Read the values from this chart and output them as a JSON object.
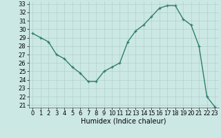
{
  "x": [
    0,
    1,
    2,
    3,
    4,
    5,
    6,
    7,
    8,
    9,
    10,
    11,
    12,
    13,
    14,
    15,
    16,
    17,
    18,
    19,
    20,
    21,
    22,
    23
  ],
  "y": [
    29.5,
    29.0,
    28.5,
    27.0,
    26.5,
    25.5,
    24.8,
    23.8,
    23.8,
    25.0,
    25.5,
    26.0,
    28.5,
    29.8,
    30.5,
    31.5,
    32.5,
    32.8,
    32.8,
    31.2,
    30.5,
    28.0,
    22.0,
    20.8
  ],
  "xlabel": "Humidex (Indice chaleur)",
  "ylim_min": 20.7,
  "ylim_max": 33.3,
  "xlim_min": -0.5,
  "xlim_max": 23.5,
  "yticks": [
    21,
    22,
    23,
    24,
    25,
    26,
    27,
    28,
    29,
    30,
    31,
    32,
    33
  ],
  "xticks": [
    0,
    1,
    2,
    3,
    4,
    5,
    6,
    7,
    8,
    9,
    10,
    11,
    12,
    13,
    14,
    15,
    16,
    17,
    18,
    19,
    20,
    21,
    22,
    23
  ],
  "line_color": "#2e7d6e",
  "marker": "+",
  "bg_color": "#cce8e4",
  "grid_color": "#b0d0cc",
  "label_fontsize": 7,
  "tick_fontsize": 6,
  "marker_size": 3,
  "linewidth": 1.0
}
